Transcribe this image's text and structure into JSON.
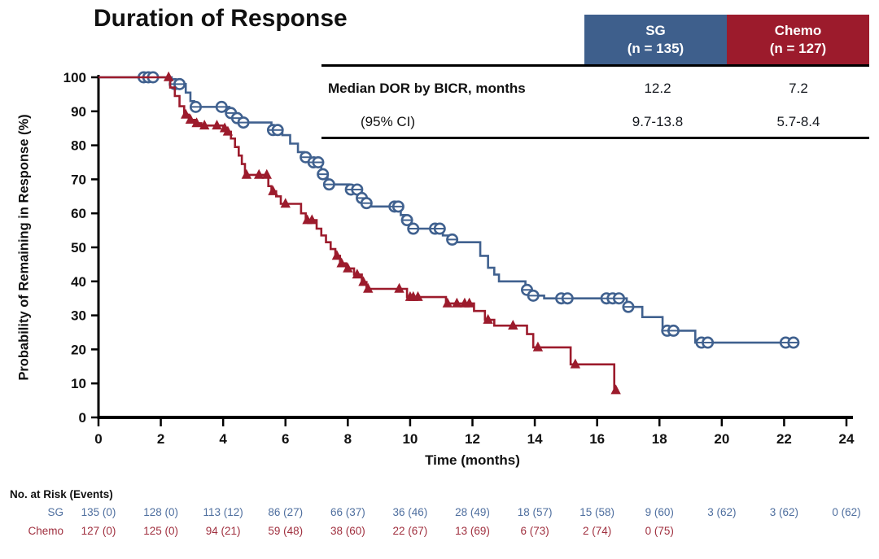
{
  "chart_data": {
    "type": "km_step_line",
    "title": "Duration of Response",
    "xlabel": "Time (months)",
    "ylabel": "Probability of Remaining in Response (%)",
    "xlim": [
      0,
      24
    ],
    "ylim": [
      0,
      100
    ],
    "xticks": [
      0,
      2,
      4,
      6,
      8,
      10,
      12,
      14,
      16,
      18,
      20,
      22,
      24
    ],
    "yticks": [
      0,
      10,
      20,
      30,
      40,
      50,
      60,
      70,
      80,
      90,
      100
    ],
    "grid": false,
    "series": [
      {
        "name": "SG",
        "n": 135,
        "color": "#40618f",
        "marker": "circle",
        "median_months": "12.2",
        "ci_95": "9.7-13.8",
        "end": 22.45,
        "steps": [
          [
            0,
            100
          ],
          [
            2.35,
            98
          ],
          [
            2.8,
            95.5
          ],
          [
            2.95,
            93
          ],
          [
            3.07,
            91.3
          ],
          [
            4.2,
            89.5
          ],
          [
            4.4,
            88
          ],
          [
            4.6,
            86.7
          ],
          [
            5.55,
            84.5
          ],
          [
            5.9,
            83
          ],
          [
            6.15,
            80.5
          ],
          [
            6.4,
            78
          ],
          [
            6.6,
            76.5
          ],
          [
            6.8,
            75
          ],
          [
            7.15,
            71.5
          ],
          [
            7.35,
            68.5
          ],
          [
            8.05,
            67
          ],
          [
            8.4,
            64.5
          ],
          [
            8.55,
            63
          ],
          [
            8.75,
            62
          ],
          [
            9.7,
            59.5
          ],
          [
            9.85,
            58
          ],
          [
            10.0,
            55.5
          ],
          [
            11.05,
            53.5
          ],
          [
            11.3,
            52.3
          ],
          [
            11.45,
            51.5
          ],
          [
            12.25,
            47.5
          ],
          [
            12.5,
            44
          ],
          [
            12.7,
            42
          ],
          [
            12.85,
            40
          ],
          [
            13.7,
            37.5
          ],
          [
            13.9,
            35.8
          ],
          [
            14.3,
            35
          ],
          [
            16.95,
            32.5
          ],
          [
            17.45,
            29.5
          ],
          [
            18.1,
            25.5
          ],
          [
            19.15,
            22
          ]
        ],
        "censors": [
          [
            1.45,
            100
          ],
          [
            1.6,
            100
          ],
          [
            1.75,
            100
          ],
          [
            2.45,
            98
          ],
          [
            2.6,
            98
          ],
          [
            3.12,
            91.3
          ],
          [
            3.95,
            91.3
          ],
          [
            4.25,
            89.5
          ],
          [
            4.45,
            88
          ],
          [
            4.65,
            86.7
          ],
          [
            5.6,
            84.5
          ],
          [
            5.75,
            84.5
          ],
          [
            6.65,
            76.5
          ],
          [
            6.9,
            75
          ],
          [
            7.05,
            75
          ],
          [
            7.2,
            71.5
          ],
          [
            7.4,
            68.5
          ],
          [
            8.1,
            67
          ],
          [
            8.3,
            67
          ],
          [
            8.45,
            64.5
          ],
          [
            8.6,
            63
          ],
          [
            9.5,
            62
          ],
          [
            9.62,
            62
          ],
          [
            9.9,
            58
          ],
          [
            10.1,
            55.5
          ],
          [
            10.8,
            55.5
          ],
          [
            10.95,
            55.5
          ],
          [
            11.35,
            52.3
          ],
          [
            13.75,
            37.5
          ],
          [
            13.95,
            35.8
          ],
          [
            14.85,
            35
          ],
          [
            15.05,
            35
          ],
          [
            16.3,
            35
          ],
          [
            16.5,
            35
          ],
          [
            16.7,
            35
          ],
          [
            17.0,
            32.5
          ],
          [
            18.25,
            25.5
          ],
          [
            18.45,
            25.5
          ],
          [
            19.35,
            22
          ],
          [
            19.55,
            22
          ],
          [
            22.05,
            22
          ],
          [
            22.3,
            22
          ]
        ]
      },
      {
        "name": "Chemo",
        "n": 127,
        "color": "#9c1b2c",
        "marker": "triangle",
        "median_months": "7.2",
        "ci_95": "5.7-8.4",
        "end": 16.68,
        "steps": [
          [
            0,
            100
          ],
          [
            2.3,
            97
          ],
          [
            2.45,
            94.5
          ],
          [
            2.6,
            91.5
          ],
          [
            2.75,
            89
          ],
          [
            2.9,
            87.5
          ],
          [
            3.1,
            86.5
          ],
          [
            3.3,
            85.8
          ],
          [
            4.0,
            85
          ],
          [
            4.12,
            84
          ],
          [
            4.25,
            82
          ],
          [
            4.38,
            79.5
          ],
          [
            4.5,
            77
          ],
          [
            4.6,
            74.5
          ],
          [
            4.7,
            71.3
          ],
          [
            5.45,
            68
          ],
          [
            5.55,
            66.5
          ],
          [
            5.7,
            65
          ],
          [
            5.85,
            62.8
          ],
          [
            6.5,
            60
          ],
          [
            6.65,
            58
          ],
          [
            7.0,
            55.5
          ],
          [
            7.15,
            53.5
          ],
          [
            7.3,
            51.5
          ],
          [
            7.45,
            49.5
          ],
          [
            7.6,
            47.5
          ],
          [
            7.75,
            45.3
          ],
          [
            7.95,
            43.8
          ],
          [
            8.2,
            42
          ],
          [
            8.45,
            39.8
          ],
          [
            8.6,
            37.8
          ],
          [
            9.9,
            35.4
          ],
          [
            11.15,
            33.5
          ],
          [
            12.05,
            31.3
          ],
          [
            12.4,
            28.7
          ],
          [
            12.7,
            27
          ],
          [
            13.75,
            24.5
          ],
          [
            13.95,
            20.6
          ],
          [
            15.15,
            15.6
          ],
          [
            16.55,
            8
          ]
        ],
        "censors": [
          [
            2.25,
            100
          ],
          [
            2.8,
            89
          ],
          [
            2.95,
            87.5
          ],
          [
            3.15,
            86.5
          ],
          [
            3.4,
            85.8
          ],
          [
            3.8,
            85.8
          ],
          [
            4.05,
            85
          ],
          [
            4.15,
            84
          ],
          [
            4.75,
            71.3
          ],
          [
            5.15,
            71.3
          ],
          [
            5.4,
            71.3
          ],
          [
            5.6,
            66.5
          ],
          [
            6.0,
            62.8
          ],
          [
            6.7,
            58
          ],
          [
            6.85,
            58
          ],
          [
            7.65,
            47.5
          ],
          [
            7.8,
            45.3
          ],
          [
            8.0,
            43.8
          ],
          [
            8.3,
            42
          ],
          [
            8.5,
            39.8
          ],
          [
            8.65,
            37.8
          ],
          [
            9.65,
            37.8
          ],
          [
            10.0,
            35.4
          ],
          [
            10.1,
            35.4
          ],
          [
            10.25,
            35.4
          ],
          [
            11.2,
            33.5
          ],
          [
            11.5,
            33.5
          ],
          [
            11.75,
            33.5
          ],
          [
            11.9,
            33.5
          ],
          [
            12.5,
            28.7
          ],
          [
            13.3,
            27
          ],
          [
            14.1,
            20.6
          ],
          [
            15.3,
            15.6
          ],
          [
            16.6,
            8
          ]
        ]
      }
    ]
  },
  "stats_table": {
    "columns": [
      {
        "label": "SG",
        "sub": "(n = 135)",
        "color": "#3e5f8c"
      },
      {
        "label": "Chemo",
        "sub": "(n = 127)",
        "color": "#9c1b2c"
      }
    ],
    "rows": [
      {
        "label": "Median DOR by BICR, months",
        "values": [
          "12.2",
          "7.2"
        ]
      },
      {
        "label": "(95% CI)",
        "values": [
          "9.7-13.8",
          "5.7-8.4"
        ]
      }
    ]
  },
  "risk_table": {
    "title": "No. at Risk (Events)",
    "times": [
      0,
      2,
      4,
      6,
      8,
      10,
      12,
      14,
      16,
      18,
      20,
      22,
      24
    ],
    "rows": [
      {
        "label": "SG",
        "color": "#4f6f9f",
        "values": [
          "135 (0)",
          "128 (0)",
          "113 (12)",
          "86 (27)",
          "66 (37)",
          "36 (46)",
          "28 (49)",
          "18 (57)",
          "15 (58)",
          "9 (60)",
          "3 (62)",
          "3 (62)",
          "0 (62)"
        ]
      },
      {
        "label": "Chemo",
        "color": "#a0303f",
        "values": [
          "127 (0)",
          "125 (0)",
          "94 (21)",
          "59 (48)",
          "38 (60)",
          "22 (67)",
          "13 (69)",
          "6 (73)",
          "2 (74)",
          "0 (75)",
          "",
          "",
          ""
        ]
      }
    ]
  }
}
